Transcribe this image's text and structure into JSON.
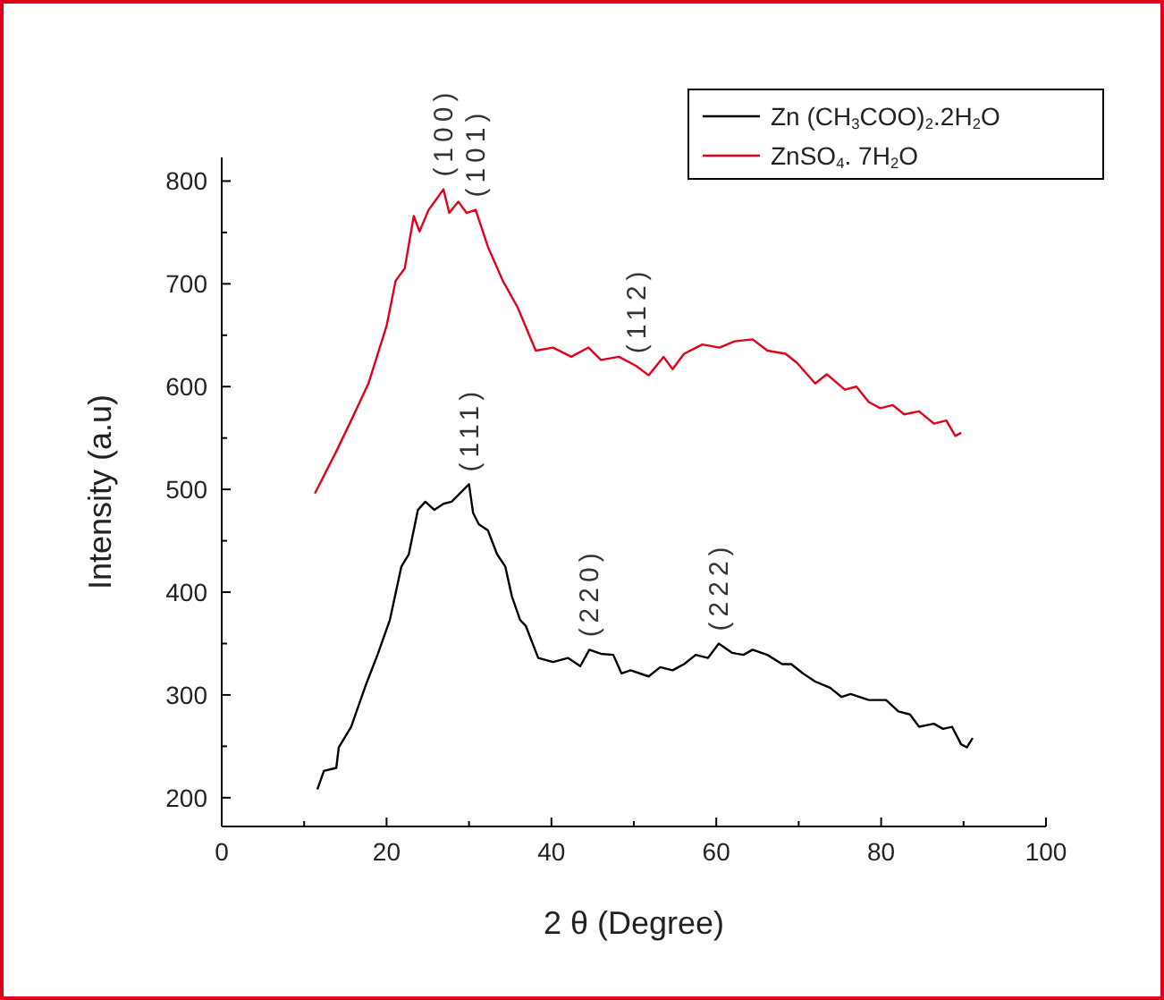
{
  "chart_data": {
    "type": "line",
    "xlabel": "2 θ (Degree)",
    "ylabel": "Intensity (a.u)",
    "xlim": [
      0,
      100
    ],
    "ylim": [
      172,
      823
    ],
    "xticks": [
      0,
      {
        "value": 10,
        "label": null
      },
      20,
      {
        "value": 30,
        "label": null
      },
      40,
      {
        "value": 50,
        "label": null
      },
      60,
      {
        "value": 70,
        "label": null
      },
      80,
      {
        "value": 90,
        "label": null
      },
      100
    ],
    "yticks": [
      200,
      {
        "value": 250,
        "label": null
      },
      300,
      {
        "value": 350,
        "label": null
      },
      400,
      {
        "value": 450,
        "label": null
      },
      500,
      {
        "value": 550,
        "label": null
      },
      600,
      {
        "value": 650,
        "label": null
      },
      700,
      {
        "value": 750,
        "label": null
      },
      800
    ],
    "grid": false,
    "legend": "top right",
    "marker": "none",
    "line_style": "solid",
    "annotations": [
      {
        "text": "(100)",
        "x": 26.9,
        "y": 792
      },
      {
        "text": "(101)",
        "x": 30.8,
        "y": 772
      },
      {
        "text": "(112)",
        "x": 50.3,
        "y": 620
      },
      {
        "text": "(111)",
        "x": 30.0,
        "y": 505
      },
      {
        "text": "(220)",
        "x": 44.6,
        "y": 344
      },
      {
        "text": "(222)",
        "x": 60.3,
        "y": 350
      }
    ],
    "series": [
      {
        "name": "Zn (CH$_{3}$COO)$_{2}$.2H$_{2}$O",
        "color": "#000000",
        "x": [
          11.6,
          12.4,
          13.9,
          14.2,
          15.7,
          17.5,
          18.9,
          20.4,
          21.8,
          22.7,
          23.8,
          24.7,
          25.8,
          26.9,
          27.9,
          29.0,
          30.0,
          30.5,
          31.2,
          32.3,
          33.4,
          34.4,
          35.2,
          36.2,
          36.9,
          38.4,
          40.2,
          42.0,
          43.5,
          44.6,
          46.0,
          47.5,
          48.5,
          49.6,
          51.8,
          53.2,
          54.7,
          56.1,
          57.5,
          59.0,
          60.3,
          61.9,
          63.3,
          64.4,
          66.2,
          68.0,
          69.1,
          70.5,
          72.0,
          73.8,
          75.2,
          76.3,
          78.5,
          80.6,
          82.1,
          83.5,
          84.6,
          86.4,
          87.5,
          88.6,
          89.7,
          90.4,
          91.1
        ],
        "values": [
          208,
          226,
          229,
          249,
          269,
          310,
          339,
          373,
          425,
          437,
          480,
          488,
          480,
          486,
          488,
          497,
          505,
          477,
          466,
          460,
          437,
          425,
          396,
          373,
          367,
          336,
          332,
          336,
          328,
          344,
          340,
          339,
          321,
          324,
          318,
          327,
          324,
          330,
          339,
          336,
          350,
          341,
          339,
          344,
          339,
          330,
          330,
          321,
          313,
          307,
          298,
          301,
          295,
          295,
          284,
          281,
          269,
          272,
          267,
          269,
          252,
          249,
          258
        ]
      },
      {
        "name": "ZnSO$_{4}$. 7H$_{2}$O",
        "color": "#e0001b",
        "x": [
          11.3,
          13.9,
          15.7,
          17.8,
          20.0,
          21.1,
          22.2,
          23.3,
          24.0,
          25.1,
          26.1,
          26.9,
          27.6,
          28.7,
          29.7,
          30.8,
          32.3,
          34.1,
          35.9,
          38.1,
          40.2,
          42.4,
          44.5,
          46.0,
          48.2,
          50.3,
          51.8,
          53.6,
          54.7,
          56.1,
          58.3,
          60.4,
          62.2,
          64.4,
          66.2,
          68.4,
          69.8,
          72.0,
          73.4,
          75.6,
          77.0,
          78.5,
          79.9,
          81.4,
          82.8,
          84.6,
          86.4,
          87.9,
          89.0,
          89.7
        ],
        "values": [
          496,
          537,
          567,
          603,
          659,
          703,
          715,
          766,
          751,
          772,
          783,
          792,
          769,
          780,
          769,
          772,
          736,
          703,
          677,
          635,
          638,
          629,
          638,
          626,
          629,
          620,
          611,
          629,
          617,
          632,
          641,
          638,
          644,
          646,
          635,
          632,
          623,
          603,
          612,
          597,
          600,
          585,
          579,
          582,
          573,
          576,
          564,
          567,
          552,
          555
        ]
      }
    ]
  }
}
